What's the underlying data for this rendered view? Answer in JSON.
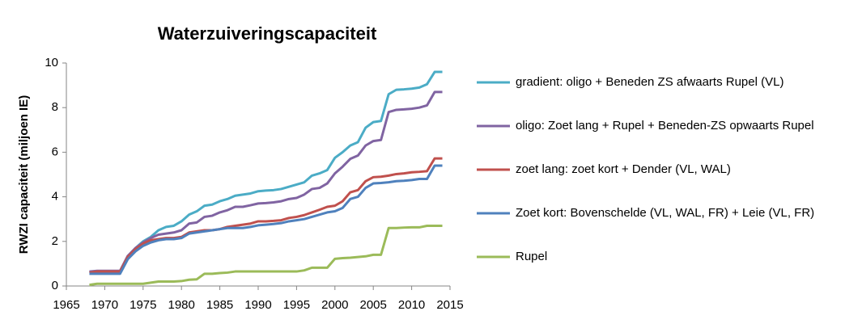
{
  "chart_data": {
    "type": "line",
    "title": "Waterzuiveringscapaciteit",
    "y_label": "RWZI capaciteit (miljoen IE)",
    "x": [
      1968,
      1969,
      1970,
      1971,
      1972,
      1973,
      1974,
      1975,
      1976,
      1977,
      1978,
      1979,
      1980,
      1981,
      1982,
      1983,
      1984,
      1985,
      1986,
      1987,
      1988,
      1989,
      1990,
      1991,
      1992,
      1993,
      1994,
      1995,
      1996,
      1997,
      1998,
      1999,
      2000,
      2001,
      2002,
      2003,
      2004,
      2005,
      2006,
      2007,
      2008,
      2009,
      2010,
      2011,
      2012,
      2013,
      2014
    ],
    "series": [
      {
        "name": "gradient: oligo + Beneden ZS afwaarts Rupel (VL)",
        "color": "#4bacc6",
        "values": [
          0.6,
          0.65,
          0.65,
          0.65,
          0.65,
          1.3,
          1.7,
          2.0,
          2.2,
          2.5,
          2.65,
          2.7,
          2.9,
          3.2,
          3.35,
          3.6,
          3.65,
          3.8,
          3.9,
          4.05,
          4.1,
          4.15,
          4.25,
          4.28,
          4.3,
          4.35,
          4.45,
          4.55,
          4.65,
          4.95,
          5.05,
          5.2,
          5.75,
          6.0,
          6.3,
          6.45,
          7.1,
          7.35,
          7.4,
          8.6,
          8.8,
          8.82,
          8.85,
          8.9,
          9.05,
          9.6,
          9.6
        ]
      },
      {
        "name": "oligo: Zoet lang + Rupel + Beneden-ZS opwaarts Rupel",
        "color": "#8064a2",
        "values": [
          0.65,
          0.68,
          0.68,
          0.68,
          0.68,
          1.35,
          1.7,
          1.95,
          2.15,
          2.3,
          2.35,
          2.4,
          2.5,
          2.8,
          2.85,
          3.1,
          3.15,
          3.3,
          3.4,
          3.55,
          3.55,
          3.62,
          3.7,
          3.72,
          3.75,
          3.8,
          3.9,
          3.95,
          4.1,
          4.35,
          4.4,
          4.6,
          5.05,
          5.35,
          5.7,
          5.85,
          6.3,
          6.5,
          6.55,
          7.8,
          7.9,
          7.92,
          7.95,
          8.0,
          8.1,
          8.7,
          8.7
        ]
      },
      {
        "name": "zoet lang: zoet kort + Dender (VL, WAL)",
        "color": "#c0504d",
        "values": [
          0.6,
          0.65,
          0.65,
          0.65,
          0.65,
          1.3,
          1.65,
          1.9,
          2.05,
          2.1,
          2.15,
          2.15,
          2.2,
          2.4,
          2.45,
          2.5,
          2.5,
          2.55,
          2.65,
          2.7,
          2.75,
          2.8,
          2.9,
          2.9,
          2.92,
          2.95,
          3.05,
          3.1,
          3.18,
          3.3,
          3.42,
          3.55,
          3.6,
          3.8,
          4.2,
          4.3,
          4.7,
          4.88,
          4.9,
          4.95,
          5.02,
          5.05,
          5.1,
          5.12,
          5.15,
          5.72,
          5.72
        ]
      },
      {
        "name": "Zoet kort: Bovenschelde (VL, WAL, FR) + Leie (VL, FR)",
        "color": "#4f81bd",
        "values": [
          0.55,
          0.55,
          0.55,
          0.55,
          0.55,
          1.2,
          1.55,
          1.8,
          1.95,
          2.05,
          2.1,
          2.1,
          2.15,
          2.35,
          2.4,
          2.45,
          2.5,
          2.55,
          2.6,
          2.6,
          2.6,
          2.65,
          2.72,
          2.75,
          2.78,
          2.82,
          2.9,
          2.95,
          3.0,
          3.1,
          3.2,
          3.3,
          3.35,
          3.5,
          3.9,
          4.0,
          4.4,
          4.6,
          4.62,
          4.65,
          4.7,
          4.72,
          4.75,
          4.8,
          4.8,
          5.4,
          5.4
        ]
      },
      {
        "name": "Rupel",
        "color": "#9bbb59",
        "values": [
          0.05,
          0.1,
          0.1,
          0.1,
          0.1,
          0.1,
          0.1,
          0.1,
          0.15,
          0.2,
          0.2,
          0.2,
          0.22,
          0.28,
          0.3,
          0.55,
          0.55,
          0.58,
          0.6,
          0.65,
          0.65,
          0.65,
          0.65,
          0.65,
          0.65,
          0.65,
          0.65,
          0.65,
          0.7,
          0.82,
          0.82,
          0.82,
          1.22,
          1.25,
          1.27,
          1.3,
          1.33,
          1.4,
          1.4,
          2.6,
          2.6,
          2.62,
          2.63,
          2.63,
          2.7,
          2.7,
          2.7
        ]
      }
    ],
    "xlim": [
      1965,
      2015
    ],
    "xticks": [
      1965,
      1970,
      1975,
      1980,
      1985,
      1990,
      1995,
      2000,
      2005,
      2010,
      2015
    ],
    "ylim": [
      0,
      10
    ],
    "yticks": [
      0,
      2,
      4,
      6,
      8,
      10
    ],
    "grid": false,
    "legend": "right"
  }
}
